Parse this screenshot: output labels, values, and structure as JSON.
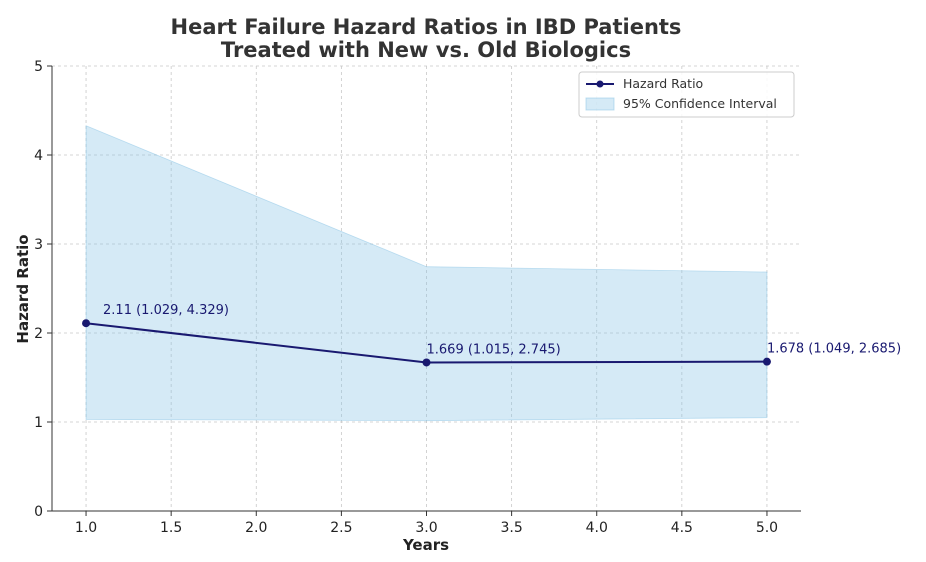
{
  "chart_data": {
    "type": "line",
    "title_lines": [
      "Heart Failure Hazard Ratios in IBD Patients",
      "Treated with New vs. Old Biologics"
    ],
    "xlabel": "Years",
    "ylabel": "Hazard Ratio",
    "xlim": [
      0.8,
      5.2
    ],
    "ylim": [
      0,
      5
    ],
    "x_ticks": [
      1.0,
      1.5,
      2.0,
      2.5,
      3.0,
      3.5,
      4.0,
      4.5,
      5.0
    ],
    "x_tick_labels": [
      "1.0",
      "1.5",
      "2.0",
      "2.5",
      "3.0",
      "3.5",
      "4.0",
      "4.5",
      "5.0"
    ],
    "y_ticks": [
      0,
      1,
      2,
      3,
      4,
      5
    ],
    "y_tick_labels": [
      "0",
      "1",
      "2",
      "3",
      "4",
      "5"
    ],
    "grid": true,
    "legend_position": "top-right",
    "series": [
      {
        "name": "Hazard Ratio",
        "color": "#191970",
        "x": [
          1.0,
          3.0,
          5.0
        ],
        "y": [
          2.11,
          1.669,
          1.678
        ],
        "ci_lower": [
          1.029,
          1.015,
          1.049
        ],
        "ci_upper": [
          4.329,
          2.745,
          2.685
        ],
        "labels": [
          "2.11 (1.029, 4.329)",
          "1.669 (1.015, 2.745)",
          "1.678 (1.049, 2.685)"
        ]
      }
    ],
    "band": {
      "name": "95% Confidence Interval",
      "color": "#87c3e6"
    }
  }
}
